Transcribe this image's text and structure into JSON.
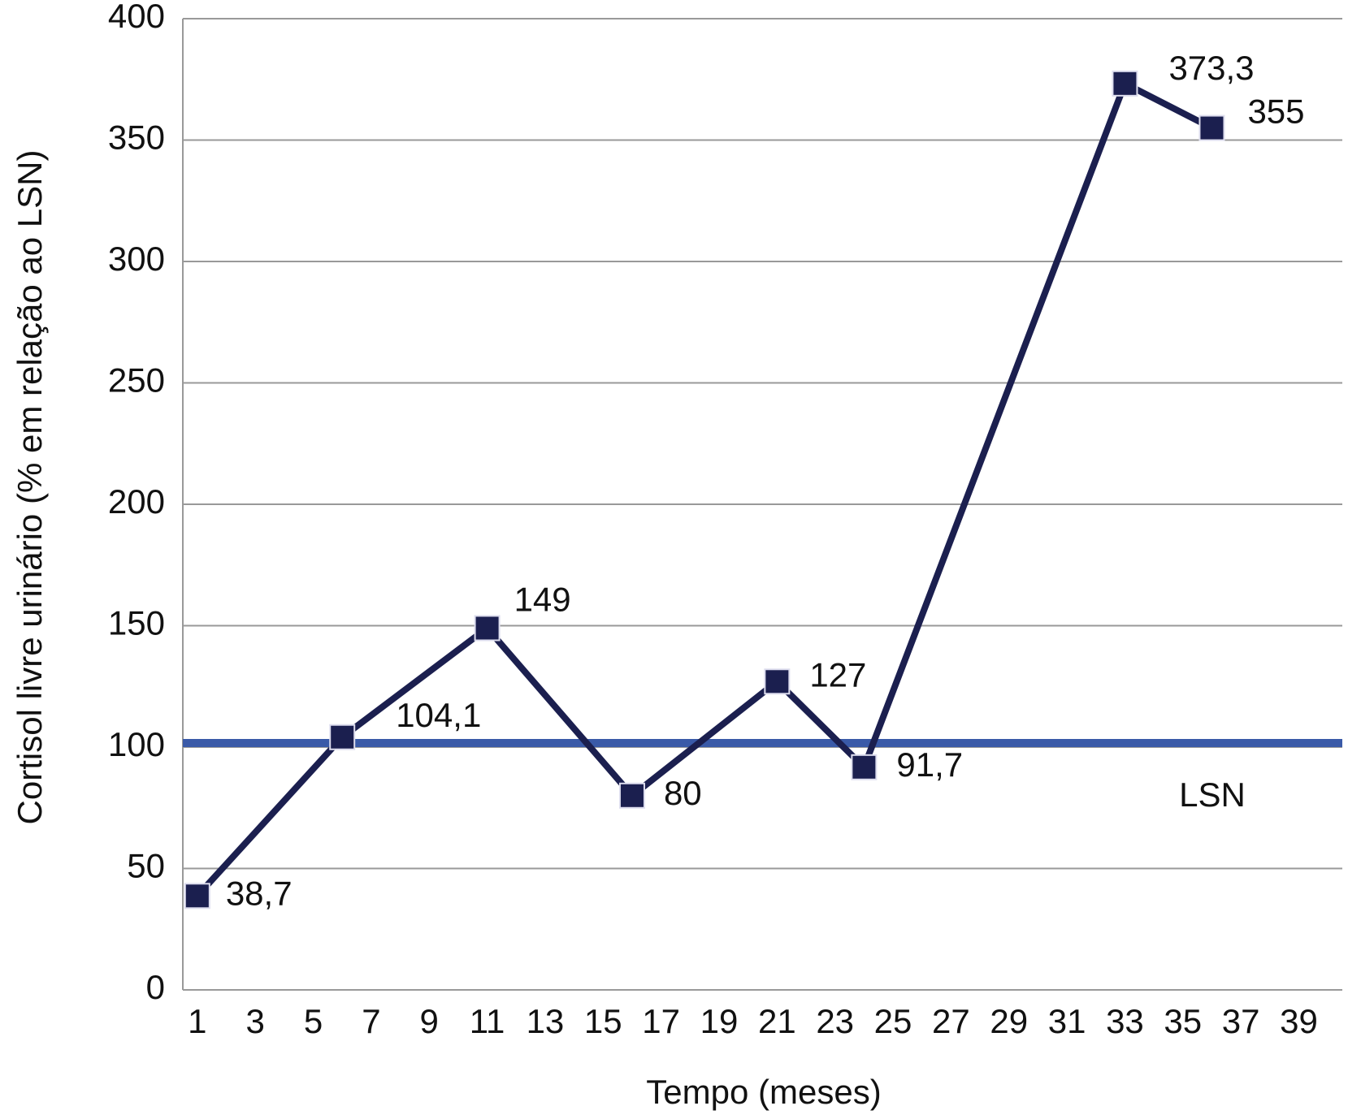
{
  "chart_data": {
    "type": "line",
    "y_label": "Cortisol livre urinário (% em relação ao LSN)",
    "x_label": "Tempo (meses)",
    "series": [
      {
        "name": "Cortisol livre urinário",
        "color": "#1b1f4f",
        "x": [
          1,
          6,
          11,
          16,
          21,
          24,
          33,
          36
        ],
        "values": [
          38.7,
          104.1,
          149,
          80,
          127,
          91.7,
          373.3,
          355
        ],
        "value_labels": [
          "38,7",
          "104,1",
          "149",
          "80",
          "127",
          "91,7",
          "373,3",
          "355"
        ]
      }
    ],
    "reference_line": {
      "value": 100,
      "label": "LSN",
      "color": "#3a5aa8"
    },
    "xlim": [
      0.5,
      40.5
    ],
    "xticks": [
      1,
      3,
      5,
      7,
      9,
      11,
      13,
      15,
      17,
      19,
      21,
      23,
      25,
      27,
      29,
      31,
      33,
      35,
      37,
      39
    ],
    "ylim": [
      0,
      400
    ],
    "yticks": [
      0,
      50,
      100,
      150,
      200,
      250,
      300,
      350,
      400
    ],
    "grid": true
  }
}
